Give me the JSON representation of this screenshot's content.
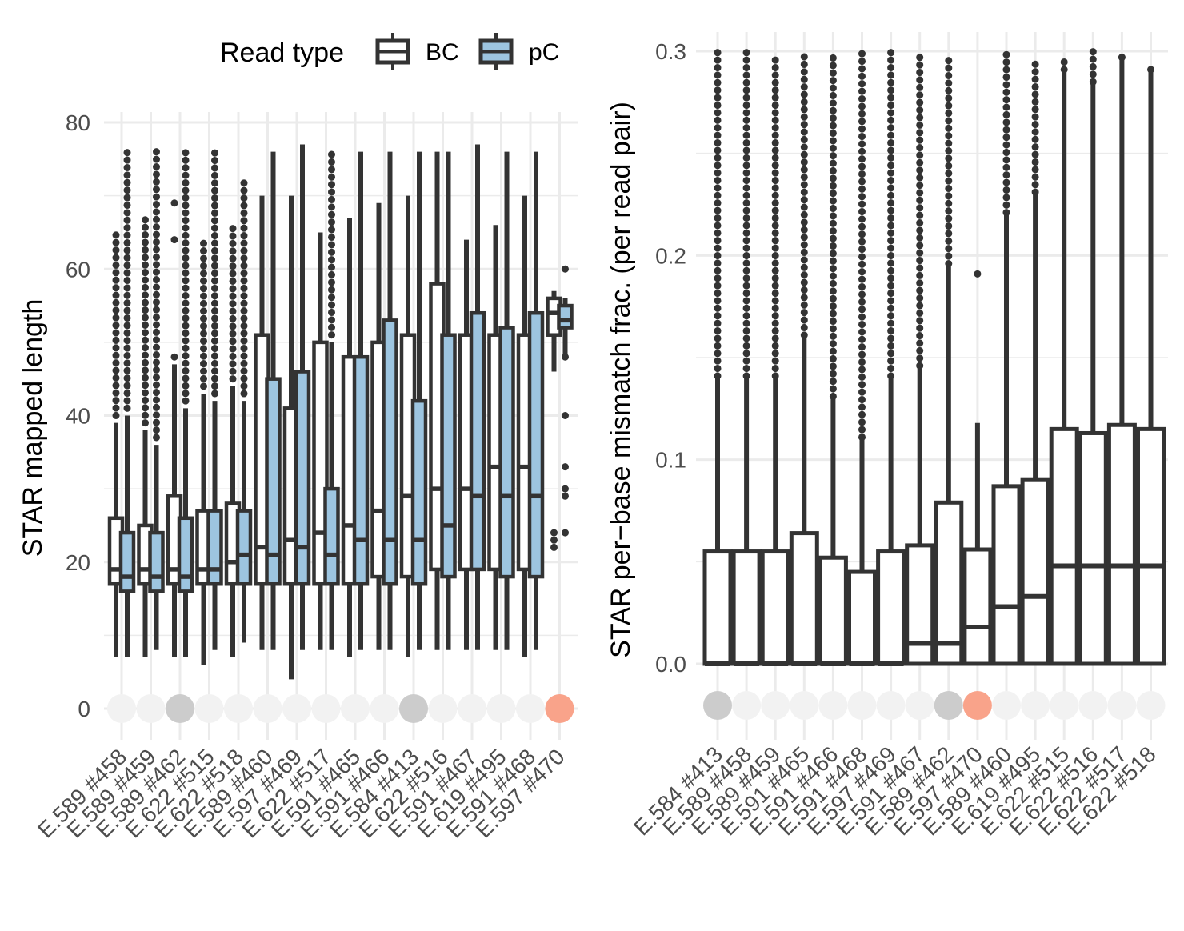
{
  "legend": {
    "title": "Read type",
    "items": [
      {
        "label": "BC",
        "color": "#333333",
        "fill": "#333333"
      },
      {
        "label": "pC",
        "color": "#333333",
        "fill": "#9dc5e0"
      }
    ]
  },
  "status_colors": {
    "neutral": "#f2f2f2",
    "grey": "#cccccc",
    "salmon": "#f9a38a"
  },
  "chart_data": [
    {
      "type": "boxplot",
      "ylabel": "STAR mapped length",
      "xlabel": "",
      "ylim": [
        0,
        80
      ],
      "yticks": [
        0,
        20,
        40,
        60,
        80
      ],
      "grid": true,
      "categories": [
        "E.589 #458",
        "E.589 #459",
        "E.589 #462",
        "E.622 #515",
        "E.622 #518",
        "E.589 #460",
        "E.597 #469",
        "E.622 #517",
        "E.591 #465",
        "E.591 #466",
        "E.584 #413",
        "E.622 #516",
        "E.591 #467",
        "E.619 #495",
        "E.591 #468",
        "E.597 #470"
      ],
      "status": [
        "neutral",
        "neutral",
        "grey",
        "neutral",
        "neutral",
        "neutral",
        "neutral",
        "neutral",
        "neutral",
        "neutral",
        "grey",
        "neutral",
        "neutral",
        "neutral",
        "neutral",
        "salmon"
      ],
      "series": [
        {
          "name": "BC",
          "boxes": [
            {
              "wlo": 7,
              "q1": 17,
              "med": 19,
              "q3": 26,
              "whi": 39,
              "out": [
                40,
                65
              ]
            },
            {
              "wlo": 7,
              "q1": 17,
              "med": 19,
              "q3": 25,
              "whi": 38,
              "out": [
                39,
                67
              ]
            },
            {
              "wlo": 7,
              "q1": 17,
              "med": 19,
              "q3": 29,
              "whi": 47,
              "out": [
                48,
                64,
                69
              ]
            },
            {
              "wlo": 6,
              "q1": 17,
              "med": 19,
              "q3": 27,
              "whi": 43,
              "out": [
                44,
                64
              ]
            },
            {
              "wlo": 7,
              "q1": 17,
              "med": 20,
              "q3": 28,
              "whi": 44,
              "out": [
                45,
                66
              ]
            },
            {
              "wlo": 8,
              "q1": 17,
              "med": 22,
              "q3": 51,
              "whi": 70,
              "out": []
            },
            {
              "wlo": 4,
              "q1": 17,
              "med": 23,
              "q3": 41,
              "whi": 70,
              "out": []
            },
            {
              "wlo": 8,
              "q1": 17,
              "med": 24,
              "q3": 50,
              "whi": 65,
              "out": []
            },
            {
              "wlo": 7,
              "q1": 17,
              "med": 25,
              "q3": 48,
              "whi": 67,
              "out": []
            },
            {
              "wlo": 8,
              "q1": 18,
              "med": 27,
              "q3": 50,
              "whi": 69,
              "out": []
            },
            {
              "wlo": 7,
              "q1": 18,
              "med": 29,
              "q3": 51,
              "whi": 70,
              "out": []
            },
            {
              "wlo": 8,
              "q1": 19,
              "med": 30,
              "q3": 58,
              "whi": 76,
              "out": []
            },
            {
              "wlo": 8,
              "q1": 19,
              "med": 30,
              "q3": 51,
              "whi": 64,
              "out": []
            },
            {
              "wlo": 8,
              "q1": 19,
              "med": 33,
              "q3": 51,
              "whi": 66,
              "out": []
            },
            {
              "wlo": 7,
              "q1": 19,
              "med": 33,
              "q3": 51,
              "whi": 70,
              "out": []
            },
            {
              "wlo": 46,
              "q1": 51,
              "med": 54,
              "q3": 56,
              "whi": 57,
              "out": [
                22,
                23,
                24
              ]
            }
          ]
        },
        {
          "name": "pC",
          "boxes": [
            {
              "wlo": 7,
              "q1": 16,
              "med": 18,
              "q3": 24,
              "whi": 40,
              "out": [
                41,
                76
              ]
            },
            {
              "wlo": 8,
              "q1": 16,
              "med": 18,
              "q3": 24,
              "whi": 36,
              "out": [
                37,
                76
              ]
            },
            {
              "wlo": 7,
              "q1": 16,
              "med": 18,
              "q3": 26,
              "whi": 41,
              "out": [
                42,
                76
              ]
            },
            {
              "wlo": 8,
              "q1": 17,
              "med": 19,
              "q3": 27,
              "whi": 42,
              "out": [
                43,
                76
              ]
            },
            {
              "wlo": 9,
              "q1": 17,
              "med": 21,
              "q3": 27,
              "whi": 42,
              "out": [
                43,
                72
              ]
            },
            {
              "wlo": 8,
              "q1": 17,
              "med": 21,
              "q3": 45,
              "whi": 76,
              "out": []
            },
            {
              "wlo": 8,
              "q1": 17,
              "med": 22,
              "q3": 46,
              "whi": 77,
              "out": []
            },
            {
              "wlo": 8,
              "q1": 17,
              "med": 21,
              "q3": 30,
              "whi": 50,
              "out": [
                51,
                76
              ]
            },
            {
              "wlo": 8,
              "q1": 17,
              "med": 23,
              "q3": 48,
              "whi": 76,
              "out": []
            },
            {
              "wlo": 8,
              "q1": 17,
              "med": 23,
              "q3": 53,
              "whi": 76,
              "out": []
            },
            {
              "wlo": 8,
              "q1": 17,
              "med": 23,
              "q3": 42,
              "whi": 76,
              "out": []
            },
            {
              "wlo": 8,
              "q1": 18,
              "med": 25,
              "q3": 51,
              "whi": 76,
              "out": []
            },
            {
              "wlo": 8,
              "q1": 19,
              "med": 29,
              "q3": 54,
              "whi": 77,
              "out": []
            },
            {
              "wlo": 8,
              "q1": 18,
              "med": 29,
              "q3": 52,
              "whi": 76,
              "out": []
            },
            {
              "wlo": 8,
              "q1": 18,
              "med": 29,
              "q3": 54,
              "whi": 76,
              "out": []
            },
            {
              "wlo": 48,
              "q1": 52,
              "med": 53,
              "q3": 55,
              "whi": 56,
              "out": [
                24,
                29,
                30,
                33,
                40,
                48,
                60
              ]
            }
          ]
        }
      ]
    },
    {
      "type": "boxplot",
      "ylabel": "STAR per−base mismatch frac. (per read pair)",
      "xlabel": "",
      "ylim": [
        -0.02,
        0.31
      ],
      "yticks": [
        0.0,
        0.1,
        0.2,
        0.3
      ],
      "ytick_labels": [
        "0.0",
        "0.1",
        "0.2",
        "0.3"
      ],
      "grid": true,
      "categories": [
        "E.584 #413",
        "E.589 #458",
        "E.589 #459",
        "E.591 #465",
        "E.591 #466",
        "E.591 #468",
        "E.597 #469",
        "E.591 #467",
        "E.589 #462",
        "E.597 #470",
        "E.589 #460",
        "E.619 #495",
        "E.622 #515",
        "E.622 #516",
        "E.622 #517",
        "E.622 #518"
      ],
      "status": [
        "grey",
        "neutral",
        "neutral",
        "neutral",
        "neutral",
        "neutral",
        "neutral",
        "neutral",
        "grey",
        "salmon",
        "neutral",
        "neutral",
        "neutral",
        "neutral",
        "neutral",
        "neutral"
      ],
      "series": [
        {
          "name": "",
          "boxes": [
            {
              "wlo": 0,
              "q1": 0,
              "med": 0,
              "q3": 0.055,
              "whi": 0.14,
              "out": [
                0.141,
                0.3
              ]
            },
            {
              "wlo": 0,
              "q1": 0,
              "med": 0,
              "q3": 0.055,
              "whi": 0.14,
              "out": [
                0.141,
                0.3
              ]
            },
            {
              "wlo": 0,
              "q1": 0,
              "med": 0,
              "q3": 0.055,
              "whi": 0.14,
              "out": [
                0.141,
                0.299
              ]
            },
            {
              "wlo": 0,
              "q1": 0,
              "med": 0,
              "q3": 0.064,
              "whi": 0.16,
              "out": [
                0.161,
                0.3
              ]
            },
            {
              "wlo": 0,
              "q1": 0,
              "med": 0,
              "q3": 0.052,
              "whi": 0.13,
              "out": [
                0.131,
                0.3
              ]
            },
            {
              "wlo": 0,
              "q1": 0,
              "med": 0,
              "q3": 0.045,
              "whi": 0.11,
              "out": [
                0.111,
                0.3
              ]
            },
            {
              "wlo": 0,
              "q1": 0,
              "med": 0,
              "q3": 0.055,
              "whi": 0.14,
              "out": [
                0.141,
                0.3
              ]
            },
            {
              "wlo": 0,
              "q1": 0,
              "med": 0.01,
              "q3": 0.058,
              "whi": 0.145,
              "out": [
                0.146,
                0.3
              ]
            },
            {
              "wlo": 0,
              "q1": 0,
              "med": 0.01,
              "q3": 0.079,
              "whi": 0.195,
              "out": [
                0.196,
                0.298
              ]
            },
            {
              "wlo": 0,
              "q1": 0,
              "med": 0.018,
              "q3": 0.056,
              "whi": 0.118,
              "out": [
                0.191
              ]
            },
            {
              "wlo": 0,
              "q1": 0,
              "med": 0.028,
              "q3": 0.087,
              "whi": 0.22,
              "out": [
                0.221,
                0.3
              ]
            },
            {
              "wlo": 0,
              "q1": 0,
              "med": 0.033,
              "q3": 0.09,
              "whi": 0.23,
              "out": [
                0.231,
                0.296
              ]
            },
            {
              "wlo": 0,
              "q1": 0,
              "med": 0.048,
              "q3": 0.115,
              "whi": 0.29,
              "out": [
                0.291,
                0.298
              ]
            },
            {
              "wlo": 0,
              "q1": 0,
              "med": 0.048,
              "q3": 0.113,
              "whi": 0.284,
              "out": [
                0.285,
                0.3
              ]
            },
            {
              "wlo": 0,
              "q1": 0,
              "med": 0.048,
              "q3": 0.117,
              "whi": 0.296,
              "out": [
                0.297,
                0.3
              ]
            },
            {
              "wlo": 0,
              "q1": 0,
              "med": 0.048,
              "q3": 0.115,
              "whi": 0.29,
              "out": [
                0.291,
                0.294
              ]
            }
          ]
        }
      ]
    }
  ]
}
